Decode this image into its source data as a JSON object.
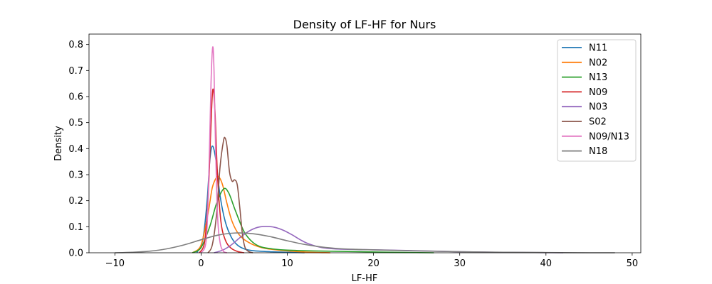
{
  "chart_data": {
    "type": "line",
    "title": "Density of LF-HF for Nurs",
    "xlabel": "LF-HF",
    "ylabel": "Density",
    "xlim": [
      -13,
      51
    ],
    "ylim": [
      0,
      0.84
    ],
    "xticks": [
      -10,
      0,
      10,
      20,
      30,
      40,
      50
    ],
    "yticks": [
      0.0,
      0.1,
      0.2,
      0.3,
      0.4,
      0.5,
      0.6,
      0.7,
      0.8
    ],
    "xtick_labels": [
      "−10",
      "0",
      "10",
      "20",
      "30",
      "40",
      "50"
    ],
    "ytick_labels": [
      "0.0",
      "0.1",
      "0.2",
      "0.3",
      "0.4",
      "0.5",
      "0.6",
      "0.7",
      "0.8"
    ],
    "grid": false,
    "legend_position": "top-right",
    "series": [
      {
        "name": "N11",
        "color": "#1f77b4",
        "x": [
          -0.5,
          0.2,
          0.7,
          1.0,
          1.3,
          1.7,
          2.2,
          2.8,
          3.5,
          4.2,
          5.0,
          6.0,
          8.0,
          10.0,
          12.0
        ],
        "y": [
          0.0,
          0.05,
          0.2,
          0.35,
          0.41,
          0.36,
          0.22,
          0.12,
          0.06,
          0.03,
          0.015,
          0.008,
          0.004,
          0.002,
          0.0
        ]
      },
      {
        "name": "N02",
        "color": "#ff7f0e",
        "x": [
          -1.0,
          0.0,
          0.8,
          1.3,
          1.8,
          2.1,
          2.5,
          3.0,
          3.6,
          4.4,
          5.5,
          7.0,
          9.0,
          12.0,
          15.0
        ],
        "y": [
          0.0,
          0.03,
          0.15,
          0.25,
          0.29,
          0.29,
          0.26,
          0.19,
          0.12,
          0.07,
          0.04,
          0.02,
          0.01,
          0.003,
          0.0
        ]
      },
      {
        "name": "N13",
        "color": "#2ca02c",
        "x": [
          -1.0,
          0.0,
          1.0,
          1.8,
          2.6,
          3.2,
          4.0,
          5.0,
          6.0,
          7.0,
          8.5,
          10.0,
          13.0,
          17.0,
          22.0,
          27.0
        ],
        "y": [
          0.0,
          0.02,
          0.1,
          0.19,
          0.245,
          0.23,
          0.16,
          0.08,
          0.04,
          0.022,
          0.014,
          0.01,
          0.007,
          0.005,
          0.002,
          0.0
        ]
      },
      {
        "name": "N09",
        "color": "#d62728",
        "x": [
          -0.2,
          0.4,
          0.8,
          1.1,
          1.35,
          1.6,
          1.9,
          2.3,
          2.8,
          3.4,
          4.2,
          5.0
        ],
        "y": [
          0.0,
          0.04,
          0.2,
          0.45,
          0.625,
          0.55,
          0.3,
          0.12,
          0.05,
          0.02,
          0.005,
          0.0
        ]
      },
      {
        "name": "N03",
        "color": "#9467bd",
        "x": [
          1.5,
          2.5,
          3.5,
          4.5,
          5.5,
          6.5,
          7.5,
          8.5,
          9.5,
          10.5,
          11.5,
          12.5,
          14.0,
          16.0,
          19.0,
          22.0,
          26.0,
          30.0,
          34.0,
          38.0,
          42.0
        ],
        "y": [
          0.0,
          0.01,
          0.03,
          0.058,
          0.082,
          0.097,
          0.101,
          0.098,
          0.087,
          0.07,
          0.05,
          0.034,
          0.02,
          0.014,
          0.012,
          0.01,
          0.007,
          0.004,
          0.002,
          0.001,
          0.0
        ]
      },
      {
        "name": "S02",
        "color": "#8c564b",
        "x": [
          0.8,
          1.3,
          1.8,
          2.2,
          2.6,
          2.8,
          3.0,
          3.3,
          3.6,
          3.9,
          4.2,
          4.5,
          4.8,
          5.1,
          5.5,
          6.0
        ],
        "y": [
          0.0,
          0.03,
          0.15,
          0.33,
          0.43,
          0.44,
          0.41,
          0.31,
          0.275,
          0.28,
          0.26,
          0.17,
          0.07,
          0.02,
          0.005,
          0.0
        ]
      },
      {
        "name": "N09/N13",
        "color": "#e377c2",
        "x": [
          0.0,
          0.6,
          0.9,
          1.15,
          1.35,
          1.5,
          1.65,
          1.9,
          2.2,
          2.6,
          3.0
        ],
        "y": [
          0.0,
          0.05,
          0.3,
          0.65,
          0.79,
          0.7,
          0.45,
          0.15,
          0.04,
          0.005,
          0.0
        ]
      },
      {
        "name": "N18",
        "color": "#7f7f7f",
        "x": [
          -10.0,
          -8.0,
          -6.0,
          -4.0,
          -2.0,
          0.0,
          2.0,
          4.0,
          6.0,
          8.0,
          10.0,
          12.0,
          14.0,
          16.0,
          18.0,
          20.0,
          25.0,
          30.0,
          35.0,
          40.0,
          45.0,
          48.0
        ],
        "y": [
          0.0,
          0.002,
          0.006,
          0.015,
          0.03,
          0.05,
          0.068,
          0.076,
          0.073,
          0.062,
          0.046,
          0.032,
          0.022,
          0.016,
          0.013,
          0.011,
          0.007,
          0.004,
          0.002,
          0.001,
          0.0,
          0.0
        ]
      }
    ]
  }
}
